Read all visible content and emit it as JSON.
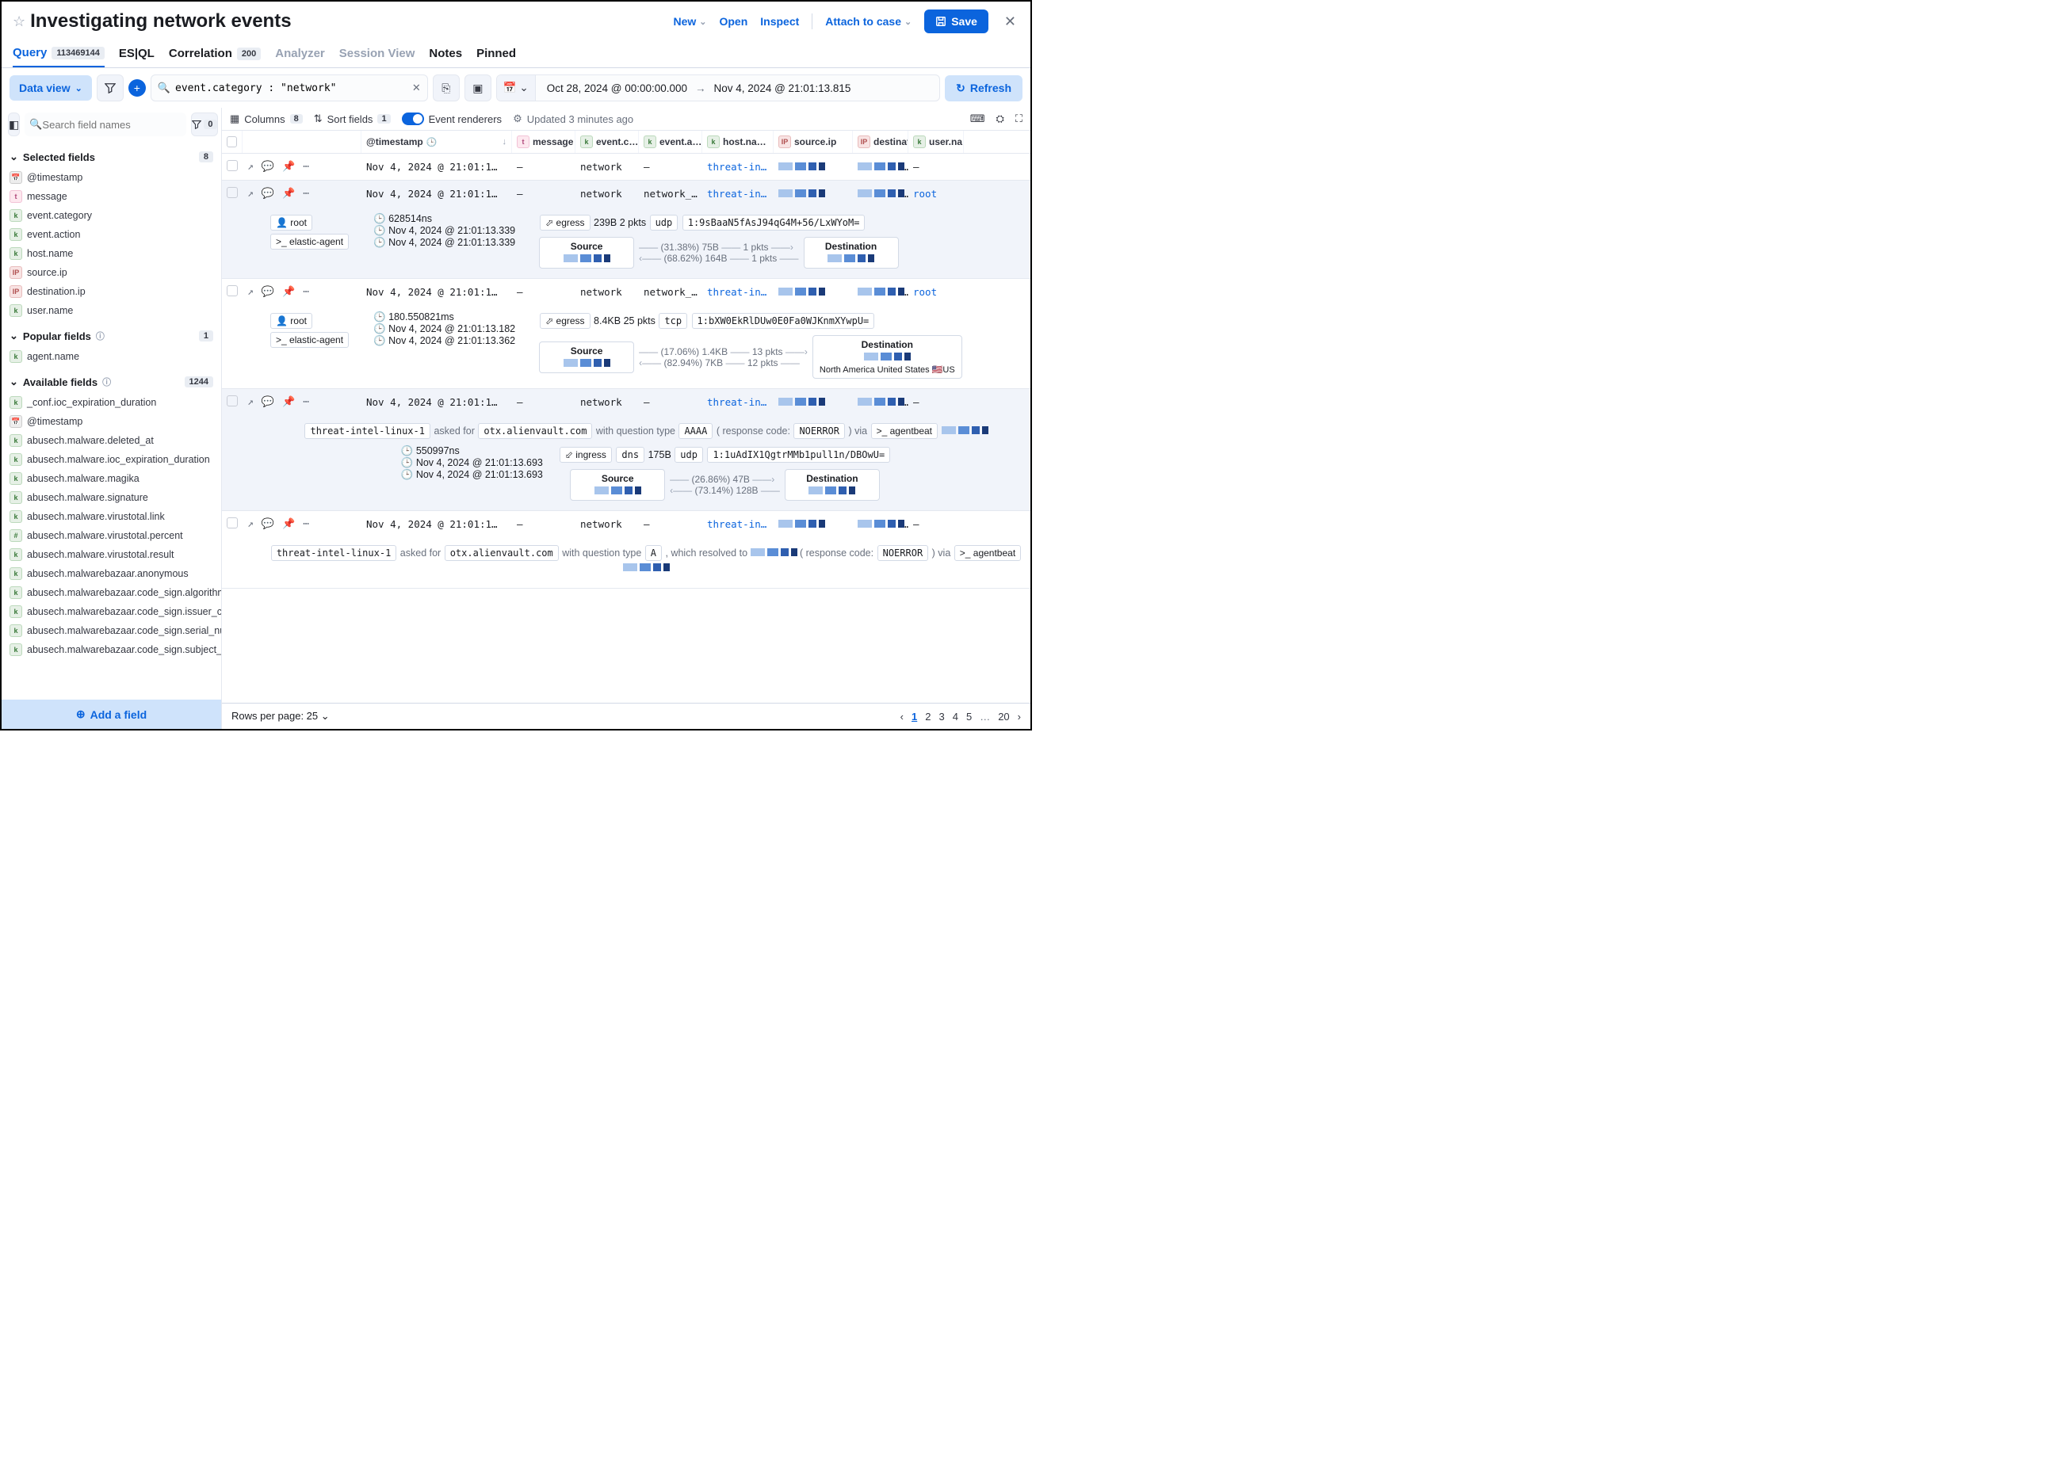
{
  "colors": {
    "primary": "#0b64dd",
    "chipBorder": "#d3dae6",
    "muted": "#69707d"
  },
  "header": {
    "title": "Investigating network events",
    "new": "New",
    "open": "Open",
    "inspect": "Inspect",
    "attach": "Attach to case",
    "save": "Save"
  },
  "tabs": {
    "query": {
      "label": "Query",
      "badge": "113469144"
    },
    "esql": "ES|QL",
    "correlation": {
      "label": "Correlation",
      "badge": "200"
    },
    "analyzer": "Analyzer",
    "session": "Session View",
    "notes": "Notes",
    "pinned": "Pinned"
  },
  "toolbar": {
    "dataview": "Data view",
    "query": "event.category : \"network\"",
    "date_from": "Oct 28, 2024 @ 00:00:00.000",
    "date_to": "Nov 4, 2024 @ 21:01:13.815",
    "refresh": "Refresh"
  },
  "sidebar": {
    "search_placeholder": "Search field names",
    "filter_badge": "0",
    "selected": {
      "title": "Selected fields",
      "count": "8",
      "items": [
        {
          "icon": "d",
          "name": "@timestamp"
        },
        {
          "icon": "t",
          "name": "message"
        },
        {
          "icon": "k",
          "name": "event.category"
        },
        {
          "icon": "k",
          "name": "event.action"
        },
        {
          "icon": "k",
          "name": "host.name"
        },
        {
          "icon": "ip",
          "name": "source.ip"
        },
        {
          "icon": "ip",
          "name": "destination.ip"
        },
        {
          "icon": "k",
          "name": "user.name"
        }
      ]
    },
    "popular": {
      "title": "Popular fields",
      "count": "1",
      "items": [
        {
          "icon": "k",
          "name": "agent.name"
        }
      ]
    },
    "available": {
      "title": "Available fields",
      "count": "1244",
      "items": [
        {
          "icon": "k",
          "name": "_conf.ioc_expiration_duration"
        },
        {
          "icon": "d",
          "name": "@timestamp"
        },
        {
          "icon": "k",
          "name": "abusech.malware.deleted_at"
        },
        {
          "icon": "k",
          "name": "abusech.malware.ioc_expiration_duration"
        },
        {
          "icon": "k",
          "name": "abusech.malware.magika"
        },
        {
          "icon": "k",
          "name": "abusech.malware.signature"
        },
        {
          "icon": "k",
          "name": "abusech.malware.virustotal.link"
        },
        {
          "icon": "h",
          "name": "abusech.malware.virustotal.percent"
        },
        {
          "icon": "k",
          "name": "abusech.malware.virustotal.result"
        },
        {
          "icon": "k",
          "name": "abusech.malwarebazaar.anonymous"
        },
        {
          "icon": "k",
          "name": "abusech.malwarebazaar.code_sign.algorithm"
        },
        {
          "icon": "k",
          "name": "abusech.malwarebazaar.code_sign.issuer_cn"
        },
        {
          "icon": "k",
          "name": "abusech.malwarebazaar.code_sign.serial_number"
        },
        {
          "icon": "k",
          "name": "abusech.malwarebazaar.code_sign.subject_cn"
        }
      ]
    },
    "add": "Add a field"
  },
  "grid": {
    "columns_label": "Columns",
    "columns_count": "8",
    "sort_label": "Sort fields",
    "sort_count": "1",
    "renderers": "Event renderers",
    "updated": "Updated 3 minutes ago",
    "headers": {
      "ts": "@timestamp",
      "msg": "message",
      "cat": "event.c…",
      "act": "event.a…",
      "host": "host.na…",
      "src": "source.ip",
      "dst": "destinati…",
      "user": "user.na…"
    }
  },
  "rows": [
    {
      "ts": "Nov 4, 2024 @ 21:01:1…",
      "msg": "—",
      "cat": "network",
      "act": "—",
      "host": "threat-in…",
      "user": "—"
    },
    {
      "ts": "Nov 4, 2024 @ 21:01:1…",
      "msg": "—",
      "cat": "network",
      "act": "network_f…",
      "host": "threat-in…",
      "user": "root",
      "hl": true,
      "renderer": {
        "user": "root",
        "proc": "elastic-agent",
        "dur": "628514ns",
        "t1": "Nov 4, 2024 @ 21:01:13.339",
        "t2": "Nov 4, 2024 @ 21:01:13.339",
        "dir": "egress",
        "bytes": "239B",
        "pkts": "2 pkts",
        "proto": "udp",
        "cid": "1:9sBaaN5fAsJ94qG4M+56/LxWYoM=",
        "out": "(31.38%) 75B",
        "out_pkts": "1 pkts",
        "in": "(68.62%) 164B",
        "in_pkts": "1 pkts"
      }
    },
    {
      "ts": "Nov 4, 2024 @ 21:01:1…",
      "msg": "—",
      "cat": "network",
      "act": "network_f…",
      "host": "threat-in…",
      "user": "root",
      "renderer2": {
        "user": "root",
        "proc": "elastic-agent",
        "dur": "180.550821ms",
        "t1": "Nov 4, 2024 @ 21:01:13.182",
        "t2": "Nov 4, 2024 @ 21:01:13.362",
        "dir": "egress",
        "bytes": "8.4KB",
        "pkts": "25 pkts",
        "proto": "tcp",
        "cid": "1:bXW0EkRlDUw0E0Fa0WJKnmXYwpU=",
        "out": "(17.06%) 1.4KB",
        "out_pkts": "13 pkts",
        "in": "(82.94%) 7KB",
        "in_pkts": "12 pkts",
        "dest_geo": "North America United States 🇺🇸US"
      }
    },
    {
      "ts": "Nov 4, 2024 @ 21:01:1…",
      "msg": "—",
      "cat": "network",
      "act": "—",
      "host": "threat-in…",
      "user": "—",
      "hl": true,
      "dns": {
        "host": "threat-intel-linux-1",
        "asked": "asked for",
        "domain": "otx.alienvault.com",
        "qtype_label": "with question type",
        "qtype": "AAAA",
        "rcode_label": "( response code:",
        "rcode": "NOERROR",
        "via": ") via",
        "proc": "agentbeat",
        "dur": "550997ns",
        "t1": "Nov 4, 2024 @ 21:01:13.693",
        "t2": "Nov 4, 2024 @ 21:01:13.693",
        "dir": "ingress",
        "app": "dns",
        "bytes": "175B",
        "proto": "udp",
        "cid": "1:1uAdIX1QgtrMMb1pull1n/DBOwU=",
        "out": "(26.86%) 47B",
        "in": "(73.14%) 128B"
      }
    },
    {
      "ts": "Nov 4, 2024 @ 21:01:1…",
      "msg": "—",
      "cat": "network",
      "act": "—",
      "host": "threat-in…",
      "user": "—",
      "dns2": {
        "host": "threat-intel-linux-1",
        "asked": "asked for",
        "domain": "otx.alienvault.com",
        "qtype_label": "with question type",
        "qtype": "A",
        "resolved": ", which resolved to",
        "rcode_label": "( response code:",
        "rcode": "NOERROR",
        "via": ") via",
        "proc": "agentbeat"
      }
    }
  ],
  "footer": {
    "rpp": "Rows per page: 25",
    "pages": [
      "1",
      "2",
      "3",
      "4",
      "5"
    ],
    "last": "20"
  }
}
